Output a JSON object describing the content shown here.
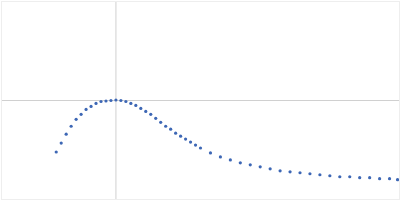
{
  "chart_data": {
    "type": "scatter",
    "x": [
      55,
      60,
      65,
      70,
      75,
      80,
      85,
      90,
      95,
      100,
      105,
      110,
      115,
      120,
      125,
      130,
      135,
      140,
      145,
      150,
      155,
      160,
      165,
      170,
      175,
      180,
      185,
      190,
      195,
      200,
      210,
      220,
      230,
      240,
      250,
      260,
      270,
      280,
      290,
      300,
      310,
      320,
      330,
      340,
      350,
      360,
      370,
      380,
      390,
      398
    ],
    "values": [
      48,
      57,
      66,
      74,
      81,
      86,
      91,
      94,
      97,
      99,
      99.5,
      100,
      100.5,
      100,
      99,
      97,
      95,
      92,
      89,
      86,
      82,
      78,
      74,
      71,
      67,
      64,
      61,
      58,
      55,
      52,
      47,
      43,
      40,
      37,
      35,
      33,
      31,
      29,
      28,
      27,
      26,
      25,
      24,
      23,
      23,
      22,
      22,
      21,
      21,
      20
    ],
    "color": "#3d67b5",
    "marker": "circle",
    "xlim": [
      0,
      400
    ],
    "ylim": [
      0,
      200
    ],
    "xticks": [
      115
    ],
    "yticks": [
      100
    ],
    "grid": true,
    "tick_labels": false
  }
}
